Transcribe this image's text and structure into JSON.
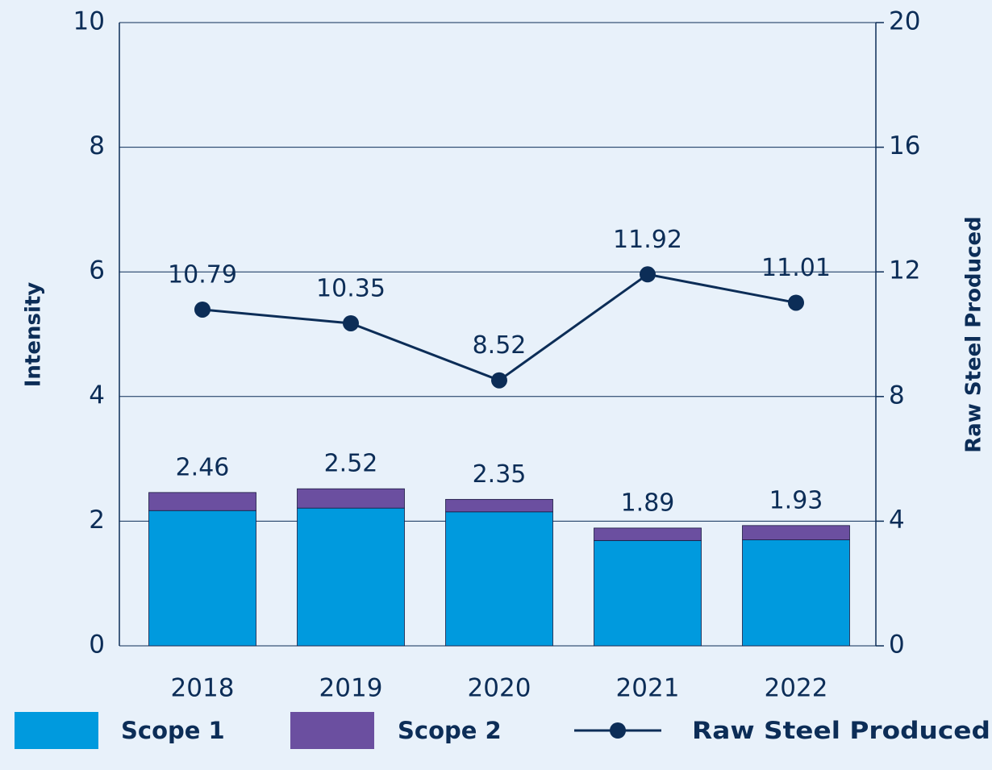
{
  "chart_data": {
    "type": "bar-line",
    "categories": [
      "2018",
      "2019",
      "2020",
      "2021",
      "2022"
    ],
    "series": [
      {
        "name": "Scope 1",
        "color": "#009ade",
        "values": [
          2.17,
          2.21,
          2.15,
          1.69,
          1.7
        ]
      },
      {
        "name": "Scope 2",
        "color": "#6b4fa0",
        "values": [
          0.29,
          0.31,
          0.2,
          0.2,
          0.23
        ]
      },
      {
        "name": "Raw Steel Produced",
        "color": "#0c2d57",
        "axis": "y2",
        "values": [
          10.79,
          10.35,
          8.52,
          11.92,
          11.01
        ]
      }
    ],
    "totals": [
      2.46,
      2.52,
      2.35,
      1.89,
      1.93
    ],
    "ylabel": "Intensity",
    "y2label": "Raw Steel Produced",
    "ylim": [
      0,
      10
    ],
    "yticks": [
      0,
      2,
      4,
      6,
      8,
      10
    ],
    "y2lim": [
      0,
      20
    ],
    "y2ticks": [
      0,
      4,
      8,
      12,
      16,
      20
    ],
    "grid": true,
    "legend": "bottom"
  }
}
